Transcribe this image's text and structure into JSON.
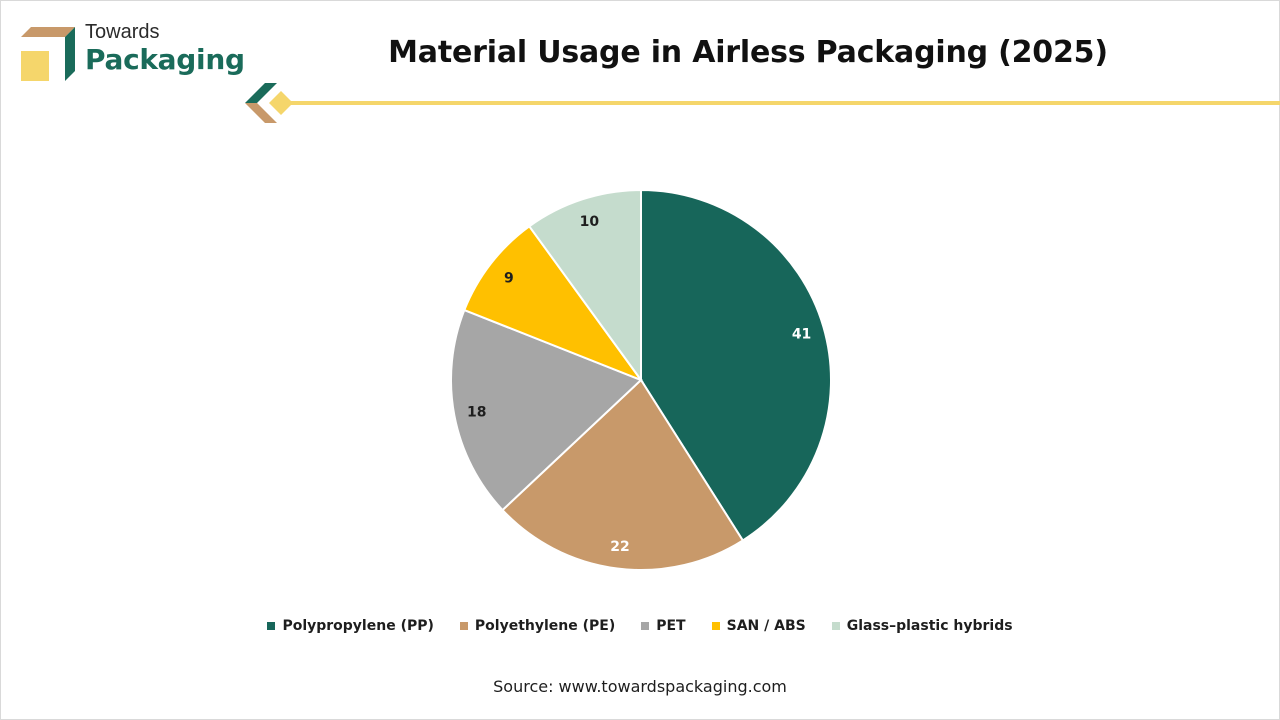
{
  "brand": {
    "line1": "Towards",
    "line2": "Packaging"
  },
  "source": "Source: www.towardspackaging.com",
  "colors": {
    "accent_green": "#1a6b5a",
    "accent_tan": "#c8996a",
    "accent_yellow": "#f5d66b",
    "slice_edge": "#ffffff"
  },
  "chart_data": {
    "type": "pie",
    "title": "Material Usage in Airless Packaging (2025)",
    "categories": [
      "Polypropylene (PP)",
      "Polyethylene (PE)",
      "PET",
      "SAN / ABS",
      "Glass–plastic hybrids"
    ],
    "values": [
      41,
      22,
      18,
      9,
      10
    ],
    "colors": [
      "#17665a",
      "#c8996a",
      "#a6a6a6",
      "#ffc000",
      "#c5dccd"
    ],
    "label_colors": [
      "#ffffff",
      "#ffffff",
      "#1e1e1e",
      "#1e1e1e",
      "#1e1e1e"
    ],
    "legend_position": "bottom",
    "start_angle": "12 o'clock",
    "direction": "clockwise"
  }
}
